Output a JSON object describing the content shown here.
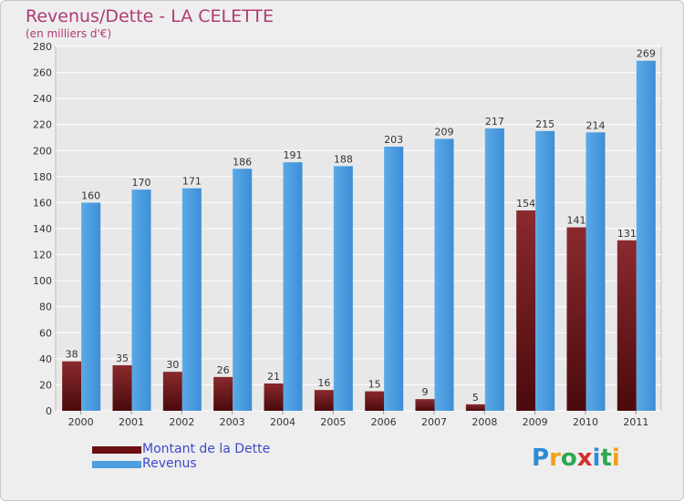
{
  "header": {
    "title": "Revenus/Dette - LA CELETTE",
    "subtitle": "(en milliers d'€)"
  },
  "legend": {
    "items": [
      {
        "label": "Montant de la Dette",
        "color": "#6b0f12"
      },
      {
        "label": "Revenus",
        "color": "#4e9ee0"
      }
    ]
  },
  "logo": {
    "text": "Proxiti",
    "letters": [
      "P",
      "r",
      "o",
      "x",
      "i",
      "t",
      "i"
    ],
    "colors": [
      "#2f8bd4",
      "#f0a020",
      "#2fa84f",
      "#d03030",
      "#2f8bd4",
      "#2fa84f",
      "#f0a020"
    ]
  },
  "chart_data": {
    "type": "bar",
    "categories": [
      "2000",
      "2001",
      "2002",
      "2003",
      "2004",
      "2005",
      "2006",
      "2007",
      "2008",
      "2009",
      "2010",
      "2011"
    ],
    "series": [
      {
        "name": "Montant de la Dette",
        "color": "#6b0f12",
        "values": [
          38,
          35,
          30,
          26,
          21,
          16,
          15,
          9,
          5,
          154,
          141,
          131
        ]
      },
      {
        "name": "Revenus",
        "color": "#4e9ee0",
        "values": [
          160,
          170,
          171,
          186,
          191,
          188,
          203,
          209,
          217,
          215,
          214,
          269
        ]
      }
    ],
    "yticks": [
      0,
      20,
      40,
      60,
      80,
      100,
      120,
      140,
      160,
      180,
      200,
      220,
      240,
      260,
      280
    ],
    "ylim": [
      0,
      280
    ],
    "grid": true
  }
}
